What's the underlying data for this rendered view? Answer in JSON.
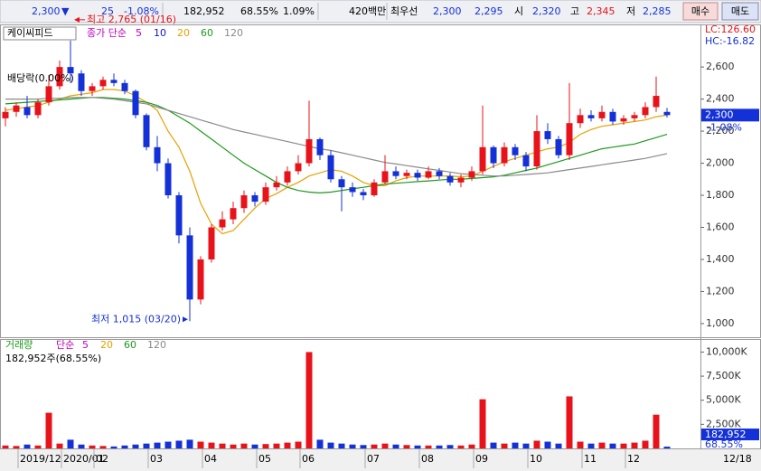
{
  "header": {
    "price": "2,300",
    "direction": "▼",
    "change": "25",
    "change_rate": "-1.08%",
    "volume": "182,952",
    "volume_ratio": "68.55%",
    "turnover": "1.09%",
    "amount": "420백만",
    "best_label": "최우선",
    "ask": "2,300",
    "bid": "2,295",
    "open_label": "시",
    "open": "2,320",
    "high_label": "고",
    "high": "2,345",
    "low_label": "저",
    "low": "2,285",
    "buy": "매수",
    "sell": "매도"
  },
  "chart_data": [
    {
      "type": "candlestick",
      "title": "케이씨피드",
      "ma_label": "종가 단순",
      "categories": [
        null,
        null,
        "2019/12",
        null,
        null,
        null,
        "2020/01",
        null,
        null,
        "02",
        null,
        null,
        null,
        null,
        "03",
        null,
        null,
        null,
        null,
        "04",
        null,
        null,
        null,
        null,
        "05",
        null,
        null,
        null,
        "06",
        null,
        null,
        null,
        null,
        null,
        "07",
        null,
        null,
        null,
        null,
        "08",
        null,
        null,
        null,
        null,
        "09",
        null,
        null,
        null,
        null,
        "10",
        null,
        null,
        null,
        null,
        "11",
        null,
        null,
        null,
        "12",
        null,
        null,
        null
      ],
      "open": [
        2280,
        2320,
        2350,
        2300,
        2380,
        2480,
        2600,
        2560,
        2450,
        2480,
        2520,
        2500,
        2450,
        2300,
        2100,
        2000,
        1800,
        1550,
        1150,
        1400,
        1600,
        1650,
        1720,
        1800,
        1760,
        1850,
        1880,
        1950,
        2000,
        2150,
        2050,
        1900,
        1850,
        1820,
        1800,
        1880,
        1950,
        1920,
        1940,
        1910,
        1950,
        1920,
        1880,
        1910,
        1950,
        2100,
        2000,
        2100,
        2050,
        1980,
        2200,
        2150,
        2050,
        2250,
        2300,
        2280,
        2320,
        2260,
        2280,
        2300,
        2350,
        2320
      ],
      "high": [
        2350,
        2380,
        2420,
        2400,
        2550,
        2640,
        2765,
        2580,
        2500,
        2540,
        2560,
        2520,
        2460,
        2310,
        2170,
        2030,
        1820,
        1600,
        1420,
        1620,
        1700,
        1760,
        1830,
        1820,
        1880,
        1920,
        1980,
        2050,
        2390,
        2160,
        2080,
        1920,
        1880,
        1840,
        1900,
        2050,
        1980,
        1960,
        1960,
        1980,
        1970,
        1940,
        1930,
        1980,
        2360,
        2110,
        2130,
        2120,
        2070,
        2300,
        2250,
        2170,
        2500,
        2340,
        2330,
        2360,
        2340,
        2300,
        2320,
        2380,
        2540,
        2345
      ],
      "low": [
        2230,
        2290,
        2280,
        2280,
        2360,
        2460,
        2500,
        2420,
        2420,
        2460,
        2480,
        2430,
        2280,
        2080,
        1950,
        1780,
        1500,
        1015,
        1120,
        1380,
        1580,
        1620,
        1690,
        1730,
        1740,
        1830,
        1860,
        1930,
        1980,
        2020,
        1880,
        1700,
        1790,
        1770,
        1790,
        1870,
        1900,
        1900,
        1890,
        1900,
        1900,
        1860,
        1850,
        1890,
        1930,
        1970,
        1980,
        2020,
        1950,
        1960,
        2120,
        2030,
        2020,
        2220,
        2260,
        2260,
        2240,
        2240,
        2260,
        2280,
        2320,
        2285
      ],
      "close": [
        2320,
        2360,
        2300,
        2380,
        2480,
        2600,
        2560,
        2450,
        2480,
        2520,
        2500,
        2450,
        2300,
        2100,
        2000,
        1800,
        1550,
        1150,
        1400,
        1600,
        1650,
        1720,
        1800,
        1760,
        1850,
        1880,
        1950,
        2000,
        2150,
        2050,
        1900,
        1850,
        1820,
        1800,
        1880,
        1950,
        1920,
        1940,
        1910,
        1950,
        1920,
        1880,
        1910,
        1950,
        2100,
        2000,
        2100,
        2050,
        1980,
        2200,
        2150,
        2050,
        2250,
        2300,
        2280,
        2320,
        2260,
        2280,
        2300,
        2350,
        2420,
        2300
      ],
      "up_color": "#e8131a",
      "down_color": "#1431d8",
      "ma_extra": [
        {
          "name": "5",
          "color": "#c000c0"
        },
        {
          "name": "10",
          "color": "#1010e0"
        }
      ],
      "series": [
        {
          "name": "20",
          "color": "#e8a000",
          "values": [
            2330,
            2340,
            2350,
            2360,
            2380,
            2400,
            2420,
            2430,
            2440,
            2460,
            2460,
            2450,
            2420,
            2380,
            2330,
            2200,
            2100,
            1950,
            1750,
            1620,
            1560,
            1580,
            1650,
            1720,
            1780,
            1810,
            1850,
            1880,
            1920,
            1940,
            1960,
            1950,
            1920,
            1880,
            1860,
            1860,
            1890,
            1910,
            1920,
            1920,
            1920,
            1920,
            1915,
            1920,
            1950,
            1980,
            2010,
            2030,
            2050,
            2070,
            2090,
            2100,
            2130,
            2180,
            2210,
            2230,
            2240,
            2250,
            2260,
            2270,
            2290,
            2300
          ]
        },
        {
          "name": "60",
          "color": "#1c9a1c",
          "values": [
            2370,
            2375,
            2380,
            2385,
            2390,
            2395,
            2400,
            2405,
            2410,
            2410,
            2405,
            2400,
            2390,
            2380,
            2360,
            2330,
            2290,
            2250,
            2200,
            2150,
            2100,
            2050,
            2000,
            1960,
            1920,
            1880,
            1850,
            1830,
            1820,
            1815,
            1820,
            1830,
            1840,
            1850,
            1860,
            1870,
            1875,
            1880,
            1885,
            1890,
            1895,
            1900,
            1900,
            1905,
            1910,
            1915,
            1925,
            1940,
            1955,
            1970,
            1990,
            2010,
            2030,
            2050,
            2070,
            2090,
            2100,
            2110,
            2120,
            2140,
            2160,
            2180
          ]
        },
        {
          "name": "120",
          "color": "#8a8a8a",
          "values": [
            2400,
            2400,
            2400,
            2400,
            2405,
            2405,
            2410,
            2410,
            2410,
            2405,
            2400,
            2390,
            2380,
            2370,
            2350,
            2330,
            2310,
            2290,
            2270,
            2250,
            2230,
            2210,
            2195,
            2180,
            2165,
            2150,
            2135,
            2120,
            2105,
            2090,
            2080,
            2065,
            2050,
            2035,
            2020,
            2005,
            1995,
            1985,
            1975,
            1965,
            1955,
            1945,
            1935,
            1930,
            1925,
            1920,
            1920,
            1925,
            1930,
            1935,
            1940,
            1950,
            1960,
            1970,
            1980,
            1990,
            2000,
            2010,
            2020,
            2030,
            2045,
            2060
          ]
        }
      ],
      "ylim": [
        915,
        2860
      ],
      "yticks": [
        {
          "value": 1000,
          "label": "1,000"
        },
        {
          "value": 1200,
          "label": "1,200"
        },
        {
          "value": 1400,
          "label": "1,400"
        },
        {
          "value": 1600,
          "label": "1,600"
        },
        {
          "value": 1800,
          "label": "1,800"
        },
        {
          "value": 2000,
          "label": "2,000"
        },
        {
          "value": 2200,
          "label": "2,200"
        },
        {
          "value": 2400,
          "label": "2,400"
        },
        {
          "value": 2600,
          "label": "2,600"
        }
      ],
      "grid": false,
      "annotations": [
        "최고 2,765 (01/16)",
        "최저 1,015 (03/20)",
        "배당락(0.00%)"
      ],
      "last_label": {
        "value": 2300,
        "label": "2,300"
      },
      "change_label": "-1.08%",
      "lc": "LC:126.60",
      "hc": "HC:-16.82",
      "x_end_label": "12/18"
    },
    {
      "type": "bar",
      "title": "거래량",
      "ma_label": "단순",
      "subtitle": "182,952주(68.55%)",
      "ma_periods": [
        {
          "name": "5",
          "color": "#c000c0"
        },
        {
          "name": "20",
          "color": "#e8a000"
        },
        {
          "name": "60",
          "color": "#1c9a1c"
        },
        {
          "name": "120",
          "color": "#8a8a8a"
        }
      ],
      "values": [
        300,
        250,
        400,
        300,
        3700,
        500,
        900,
        400,
        300,
        250,
        200,
        300,
        400,
        500,
        600,
        700,
        800,
        900,
        700,
        600,
        500,
        400,
        500,
        400,
        450,
        500,
        600,
        700,
        10000,
        900,
        600,
        500,
        400,
        350,
        400,
        500,
        400,
        350,
        300,
        300,
        300,
        350,
        300,
        400,
        5100,
        600,
        500,
        600,
        500,
        800,
        700,
        500,
        5400,
        700,
        500,
        600,
        500,
        500,
        600,
        800,
        3500,
        182.952
      ],
      "ylim": [
        0,
        11260
      ],
      "yticks": [
        {
          "value": 2500,
          "label": "2,500K"
        },
        {
          "value": 5000,
          "label": "5,000K"
        },
        {
          "value": 7500,
          "label": "7,500K"
        },
        {
          "value": 10000,
          "label": "10,000K"
        }
      ],
      "last_label": {
        "value": 182.952,
        "label": "182,952"
      },
      "ratio_label": "68.55%"
    }
  ]
}
